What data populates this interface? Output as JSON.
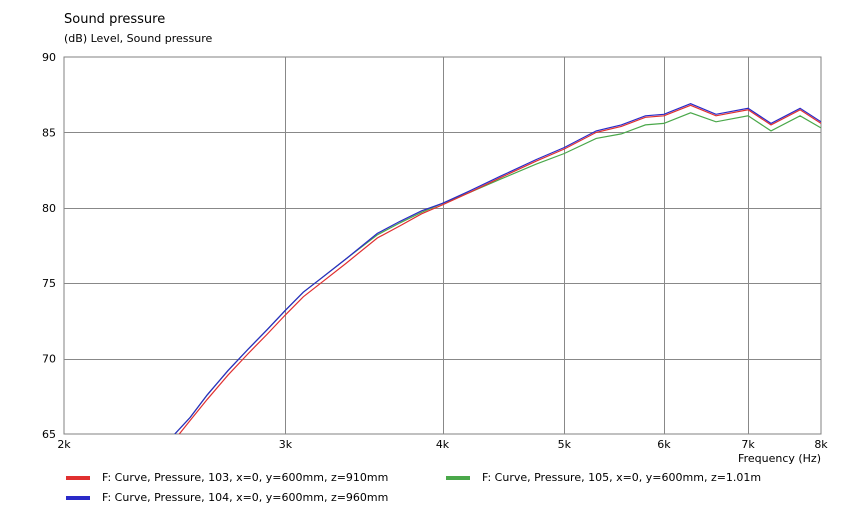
{
  "chart_data": {
    "type": "line",
    "title": "Sound pressure",
    "ylabel": "(dB)  Level, Sound pressure",
    "xlabel": "Frequency  (Hz)",
    "xscale": "log",
    "xlim": [
      2000,
      8000
    ],
    "ylim": [
      65,
      90
    ],
    "xticks": [
      2000,
      3000,
      4000,
      5000,
      6000,
      7000,
      8000
    ],
    "xtick_labels": [
      "2k",
      "3k",
      "4k",
      "5k",
      "6k",
      "7k",
      "8k"
    ],
    "yticks": [
      65,
      70,
      75,
      80,
      85,
      90
    ],
    "ytick_labels": [
      "65",
      "70",
      "75",
      "80",
      "85",
      "90"
    ],
    "grid": true,
    "legend_position": "bottom",
    "series": [
      {
        "name": "F: Curve, Pressure, 103, x=0, y=600mm, z=910mm",
        "color": "#e03030",
        "x": [
          2470,
          2520,
          2600,
          2700,
          2800,
          2900,
          3000,
          3100,
          3200,
          3350,
          3550,
          3700,
          3850,
          4000,
          4200,
          4450,
          4750,
          5000,
          5300,
          5550,
          5800,
          6000,
          6300,
          6600,
          7000,
          7300,
          7700,
          8000
        ],
        "values": [
          65.0,
          65.9,
          67.3,
          68.9,
          70.3,
          71.6,
          72.9,
          74.1,
          75.0,
          76.3,
          78.0,
          78.8,
          79.6,
          80.2,
          81.0,
          82.0,
          83.1,
          83.9,
          85.0,
          85.4,
          86.0,
          86.1,
          86.8,
          86.1,
          86.5,
          85.5,
          86.5,
          85.6
        ]
      },
      {
        "name": "F: Curve, Pressure, 104, x=0, y=600mm, z=960mm",
        "color": "#2a2ac8",
        "x": [
          2450,
          2520,
          2600,
          2700,
          2800,
          2900,
          3000,
          3100,
          3200,
          3350,
          3550,
          3700,
          3850,
          4000,
          4200,
          4450,
          4750,
          5000,
          5300,
          5550,
          5800,
          6000,
          6300,
          6600,
          7000,
          7300,
          7700,
          8000
        ],
        "values": [
          65.0,
          66.1,
          67.6,
          69.2,
          70.6,
          71.9,
          73.2,
          74.4,
          75.3,
          76.6,
          78.3,
          79.1,
          79.8,
          80.3,
          81.1,
          82.1,
          83.2,
          84.0,
          85.1,
          85.5,
          86.1,
          86.2,
          86.9,
          86.2,
          86.6,
          85.6,
          86.6,
          85.7
        ]
      },
      {
        "name": "F: Curve, Pressure, 105, x=0, y=600mm, z=1.01m",
        "color": "#4aa84a",
        "x": [
          2450,
          2520,
          2600,
          2700,
          2800,
          2900,
          3000,
          3100,
          3200,
          3350,
          3550,
          3700,
          3850,
          4000,
          4200,
          4450,
          4750,
          5000,
          5300,
          5550,
          5800,
          6000,
          6300,
          6600,
          7000,
          7300,
          7700,
          8000
        ],
        "values": [
          65.0,
          66.1,
          67.6,
          69.2,
          70.6,
          71.9,
          73.2,
          74.4,
          75.3,
          76.6,
          78.2,
          79.0,
          79.7,
          80.3,
          81.0,
          81.9,
          82.9,
          83.6,
          84.6,
          84.9,
          85.5,
          85.6,
          86.3,
          85.7,
          86.1,
          85.1,
          86.1,
          85.3
        ]
      }
    ]
  }
}
